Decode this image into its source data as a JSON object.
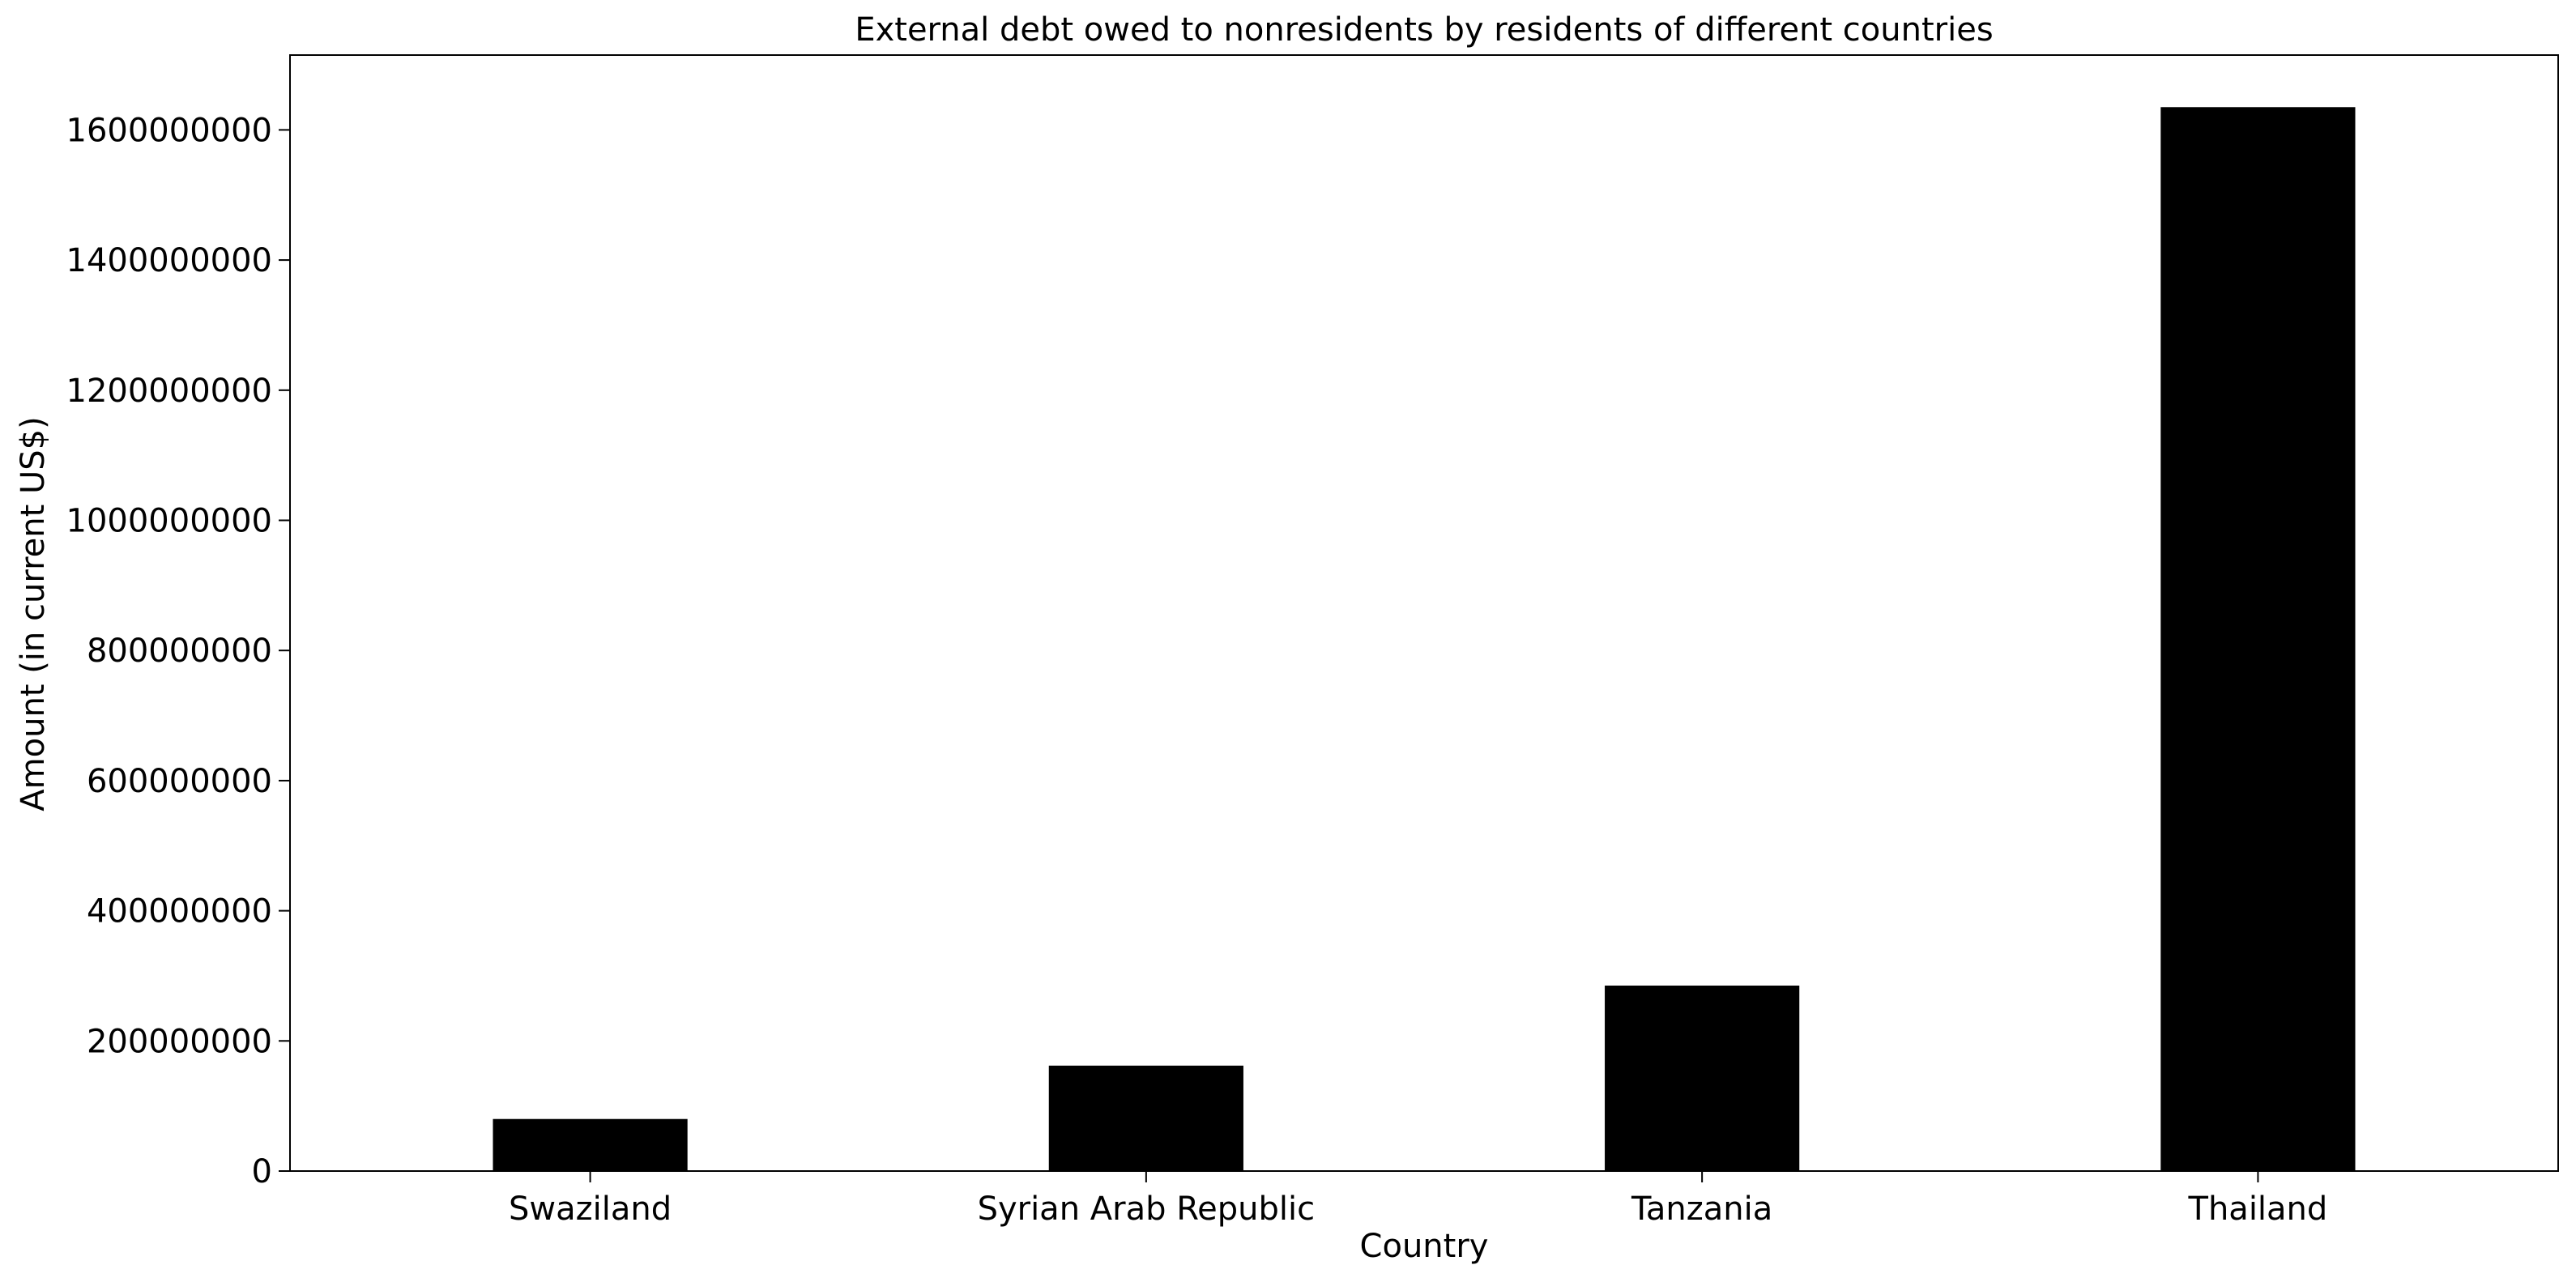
{
  "chart_data": {
    "type": "bar",
    "title": "External debt owed to nonresidents by residents of different countries",
    "xlabel": "Country",
    "ylabel": "Amount (in current US$)",
    "categories": [
      "Swaziland",
      "Syrian Arab Republic",
      "Tanzania",
      "Thailand"
    ],
    "values": [
      80000000,
      162000000,
      285000000,
      1635000000
    ],
    "ylim": [
      0,
      1715000000
    ],
    "yticks": [
      0,
      200000000,
      400000000,
      600000000,
      800000000,
      1000000000,
      1200000000,
      1400000000,
      1600000000
    ],
    "ytick_labels": [
      "0",
      "200000000",
      "400000000",
      "600000000",
      "800000000",
      "1000000000",
      "1200000000",
      "1400000000",
      "1600000000"
    ],
    "grid": false,
    "legend": "none",
    "bar_color": "#000000"
  }
}
